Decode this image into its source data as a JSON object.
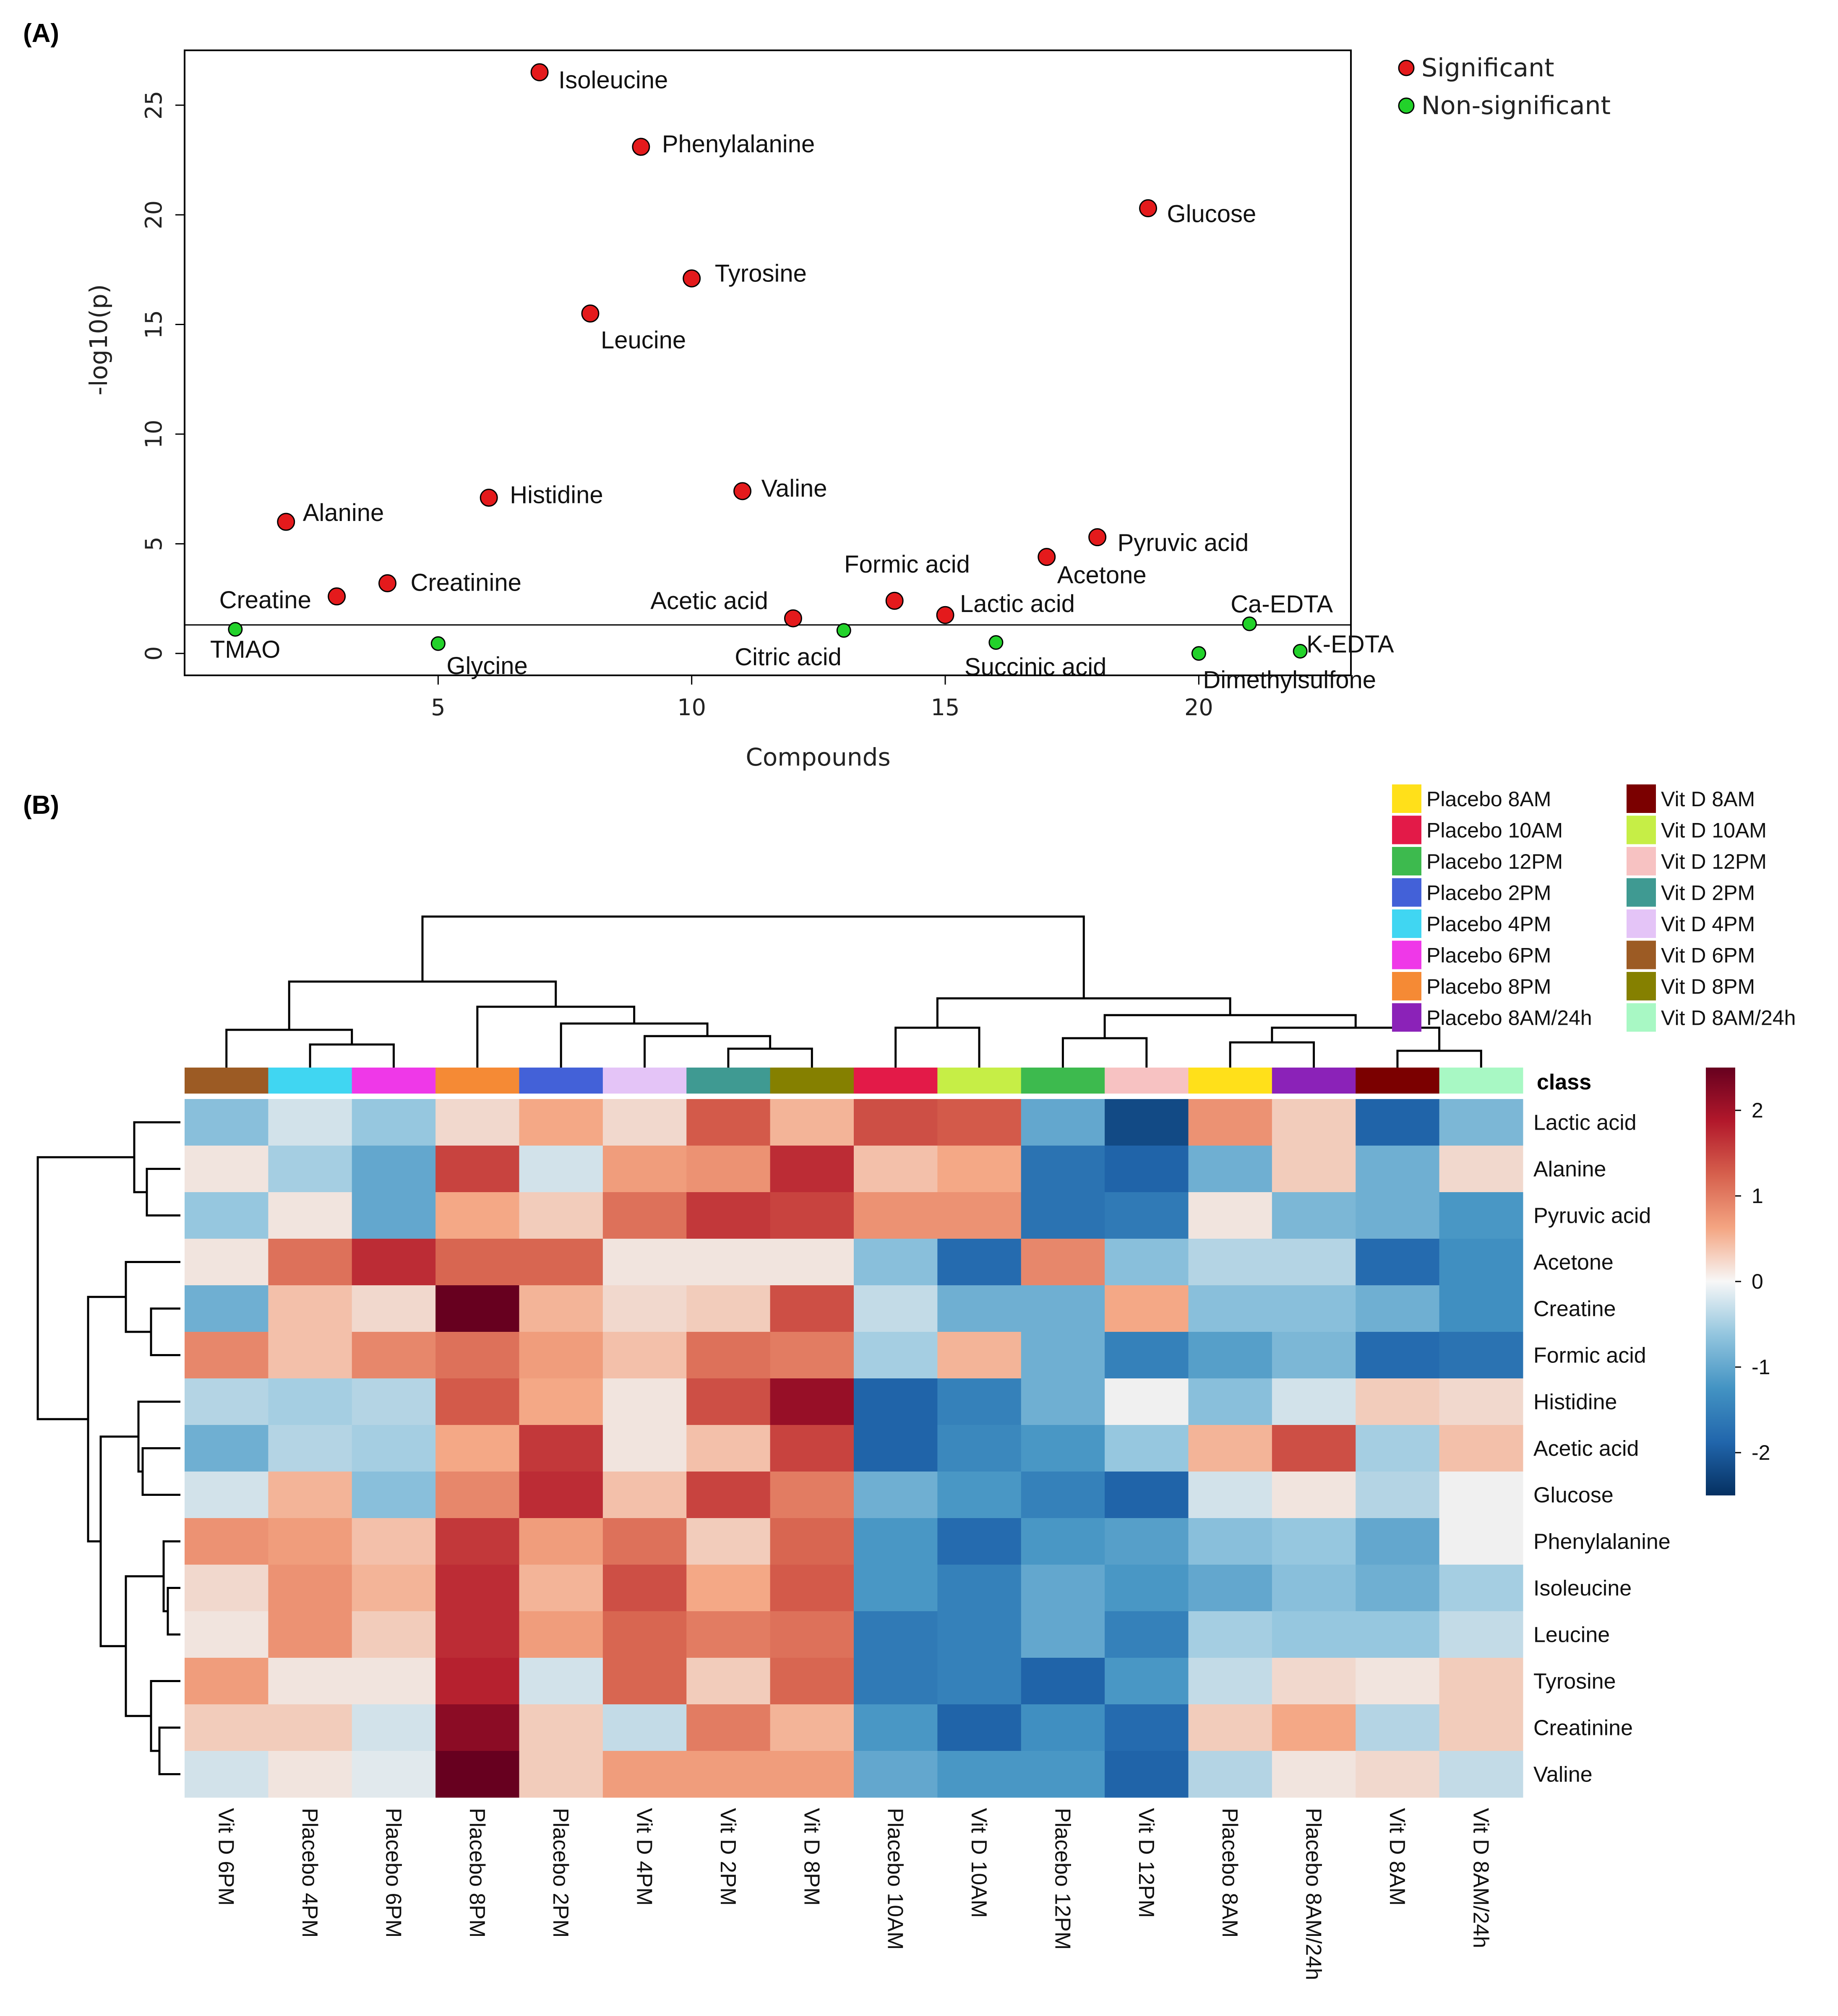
{
  "panel_a_label": "(A)",
  "panel_b_label": "(B)",
  "chart_data": [
    {
      "type": "scatter",
      "title": "",
      "xlabel": "Compounds",
      "ylabel": "-log10(p)",
      "xlim": [
        0,
        23
      ],
      "ylim": [
        -1,
        27.5
      ],
      "xticks": [
        5,
        10,
        15,
        20
      ],
      "yticks": [
        0,
        5,
        10,
        15,
        20,
        25
      ],
      "threshold_y": 1.3,
      "legend": [
        {
          "name": "Significant",
          "color": "#e41a1c"
        },
        {
          "name": "Non-significant",
          "color": "#22d22a"
        }
      ],
      "points": [
        {
          "x": 1,
          "y": 1.1,
          "label": "TMAO",
          "significant": false
        },
        {
          "x": 2,
          "y": 6.0,
          "label": "Alanine",
          "significant": true
        },
        {
          "x": 3,
          "y": 2.6,
          "label": "Creatine",
          "significant": true
        },
        {
          "x": 4,
          "y": 3.2,
          "label": "Creatinine",
          "significant": true
        },
        {
          "x": 5,
          "y": 0.45,
          "label": "Glycine",
          "significant": false
        },
        {
          "x": 6,
          "y": 7.1,
          "label": "Histidine",
          "significant": true
        },
        {
          "x": 7,
          "y": 26.5,
          "label": "Isoleucine",
          "significant": true
        },
        {
          "x": 8,
          "y": 15.5,
          "label": "Leucine",
          "significant": true
        },
        {
          "x": 9,
          "y": 23.1,
          "label": "Phenylalanine",
          "significant": true
        },
        {
          "x": 10,
          "y": 17.1,
          "label": "Tyrosine",
          "significant": true
        },
        {
          "x": 11,
          "y": 7.4,
          "label": "Valine",
          "significant": true
        },
        {
          "x": 12,
          "y": 1.6,
          "label": "Acetic acid",
          "significant": true
        },
        {
          "x": 13,
          "y": 1.05,
          "label": "Citric acid",
          "significant": false
        },
        {
          "x": 14,
          "y": 2.4,
          "label": "Formic acid",
          "significant": true
        },
        {
          "x": 15,
          "y": 1.75,
          "label": "Lactic acid",
          "significant": true
        },
        {
          "x": 16,
          "y": 0.5,
          "label": "Succinic acid",
          "significant": false
        },
        {
          "x": 17,
          "y": 4.4,
          "label": "Acetone",
          "significant": true
        },
        {
          "x": 18,
          "y": 5.3,
          "label": "Pyruvic acid",
          "significant": true
        },
        {
          "x": 19,
          "y": 20.3,
          "label": "Glucose",
          "significant": true
        },
        {
          "x": 20,
          "y": 0.0,
          "label": "Dimethylsulfone",
          "significant": false
        },
        {
          "x": 21,
          "y": 1.35,
          "label": "Ca-EDTA",
          "significant": false
        },
        {
          "x": 22,
          "y": 0.1,
          "label": "K-EDTA",
          "significant": false
        }
      ]
    },
    {
      "type": "heatmap",
      "title": "",
      "class_label": "class",
      "columns": [
        "Vit D 6PM",
        "Placebo 4PM",
        "Placebo 6PM",
        "Placebo 8PM",
        "Placebo 2PM",
        "Vit D 4PM",
        "Vit D 2PM",
        "Vit D 8PM",
        "Placebo 10AM",
        "Vit D 10AM",
        "Placebo 12PM",
        "Vit D 12PM",
        "Placebo 8AM",
        "Placebo 8AM/24h",
        "Vit D 8AM",
        "Vit D 8AM/24h"
      ],
      "rows": [
        "Lactic acid",
        "Alanine",
        "Pyruvic acid",
        "Acetone",
        "Creatine",
        "Formic acid",
        "Histidine",
        "Acetic acid",
        "Glucose",
        "Phenylalanine",
        "Isoleucine",
        "Leucine",
        "Tyrosine",
        "Creatinine",
        "Valine"
      ],
      "values": [
        [
          -0.7,
          -0.2,
          -0.6,
          0.2,
          0.6,
          0.2,
          1.3,
          0.5,
          1.4,
          1.3,
          -1.0,
          -2.2,
          0.8,
          0.3,
          -1.9,
          -0.8
        ],
        [
          0.1,
          -0.5,
          -1.0,
          1.5,
          -0.2,
          0.7,
          0.8,
          1.7,
          0.4,
          0.6,
          -1.7,
          -1.9,
          -0.9,
          0.3,
          -0.9,
          0.2
        ],
        [
          -0.6,
          0.1,
          -1.0,
          0.6,
          0.3,
          1.1,
          1.6,
          1.5,
          0.8,
          0.8,
          -1.7,
          -1.6,
          0.1,
          -0.8,
          -0.9,
          -1.2
        ],
        [
          0.1,
          1.1,
          1.7,
          1.2,
          1.2,
          0.1,
          0.1,
          0.1,
          -0.7,
          -1.8,
          0.9,
          -0.7,
          -0.4,
          -0.4,
          -1.8,
          -1.3
        ],
        [
          -0.9,
          0.4,
          0.2,
          2.6,
          0.5,
          0.2,
          0.3,
          1.4,
          -0.3,
          -0.9,
          -0.9,
          0.6,
          -0.7,
          -0.7,
          -0.9,
          -1.3
        ],
        [
          0.9,
          0.4,
          0.9,
          1.1,
          0.7,
          0.4,
          1.1,
          1.0,
          -0.5,
          0.5,
          -0.9,
          -1.5,
          -1.1,
          -0.8,
          -1.8,
          -1.7
        ],
        [
          -0.4,
          -0.5,
          -0.4,
          1.3,
          0.6,
          0.1,
          1.4,
          2.1,
          -1.9,
          -1.5,
          -0.9,
          0.0,
          -0.7,
          -0.2,
          0.3,
          0.2
        ],
        [
          -0.9,
          -0.4,
          -0.5,
          0.6,
          1.6,
          0.1,
          0.4,
          1.5,
          -1.9,
          -1.4,
          -1.2,
          -0.6,
          0.5,
          1.4,
          -0.5,
          0.4
        ],
        [
          -0.2,
          0.5,
          -0.7,
          0.9,
          1.7,
          0.4,
          1.5,
          1.0,
          -0.9,
          -1.2,
          -1.5,
          -1.9,
          -0.2,
          0.1,
          -0.4,
          0.0
        ],
        [
          0.8,
          0.7,
          0.4,
          1.6,
          0.7,
          1.1,
          0.3,
          1.2,
          -1.2,
          -1.8,
          -1.2,
          -1.1,
          -0.7,
          -0.6,
          -1.0,
          0.0
        ],
        [
          0.2,
          0.8,
          0.5,
          1.7,
          0.5,
          1.4,
          0.6,
          1.3,
          -1.2,
          -1.5,
          -1.0,
          -1.2,
          -1.0,
          -0.7,
          -0.9,
          -0.5
        ],
        [
          0.1,
          0.8,
          0.3,
          1.7,
          0.7,
          1.2,
          1.0,
          1.1,
          -1.6,
          -1.5,
          -1.0,
          -1.5,
          -0.5,
          -0.6,
          -0.6,
          -0.3
        ],
        [
          0.7,
          0.1,
          0.1,
          1.8,
          -0.2,
          1.2,
          0.3,
          1.2,
          -1.6,
          -1.5,
          -1.9,
          -1.2,
          -0.3,
          0.2,
          0.1,
          0.3
        ],
        [
          0.3,
          0.3,
          -0.2,
          2.2,
          0.3,
          -0.3,
          1.0,
          0.5,
          -1.2,
          -1.9,
          -1.3,
          -1.8,
          0.3,
          0.6,
          -0.4,
          0.3
        ],
        [
          -0.2,
          0.1,
          -0.1,
          2.5,
          0.3,
          0.7,
          0.7,
          0.7,
          -1.0,
          -1.2,
          -1.2,
          -1.9,
          -0.4,
          0.1,
          0.2,
          -0.3
        ]
      ],
      "colorbar": {
        "min": -2.5,
        "max": 2.5,
        "ticks": [
          2,
          1,
          0,
          -1,
          -2
        ]
      },
      "class_legend": [
        {
          "name": "Placebo 8AM",
          "color": "#ffe01a"
        },
        {
          "name": "Vit D 8AM",
          "color": "#7b0000"
        },
        {
          "name": "Placebo 10AM",
          "color": "#e31a48"
        },
        {
          "name": "Vit D 10AM",
          "color": "#c6ee46"
        },
        {
          "name": "Placebo 12PM",
          "color": "#3dba4e"
        },
        {
          "name": "Vit D 12PM",
          "color": "#f7c2c2"
        },
        {
          "name": "Placebo 2PM",
          "color": "#4361d8"
        },
        {
          "name": "Vit D 2PM",
          "color": "#3f9a92"
        },
        {
          "name": "Placebo 4PM",
          "color": "#40d6f2"
        },
        {
          "name": "Vit D 4PM",
          "color": "#e4c4f7"
        },
        {
          "name": "Placebo 6PM",
          "color": "#ef38e8"
        },
        {
          "name": "Vit D 6PM",
          "color": "#9c5b24"
        },
        {
          "name": "Placebo 8PM",
          "color": "#f58a35"
        },
        {
          "name": "Vit D 8PM",
          "color": "#858000"
        },
        {
          "name": "Placebo 8AM/24h",
          "color": "#8b22b8"
        },
        {
          "name": "Vit D 8AM/24h",
          "color": "#a8f8c4"
        }
      ]
    }
  ]
}
